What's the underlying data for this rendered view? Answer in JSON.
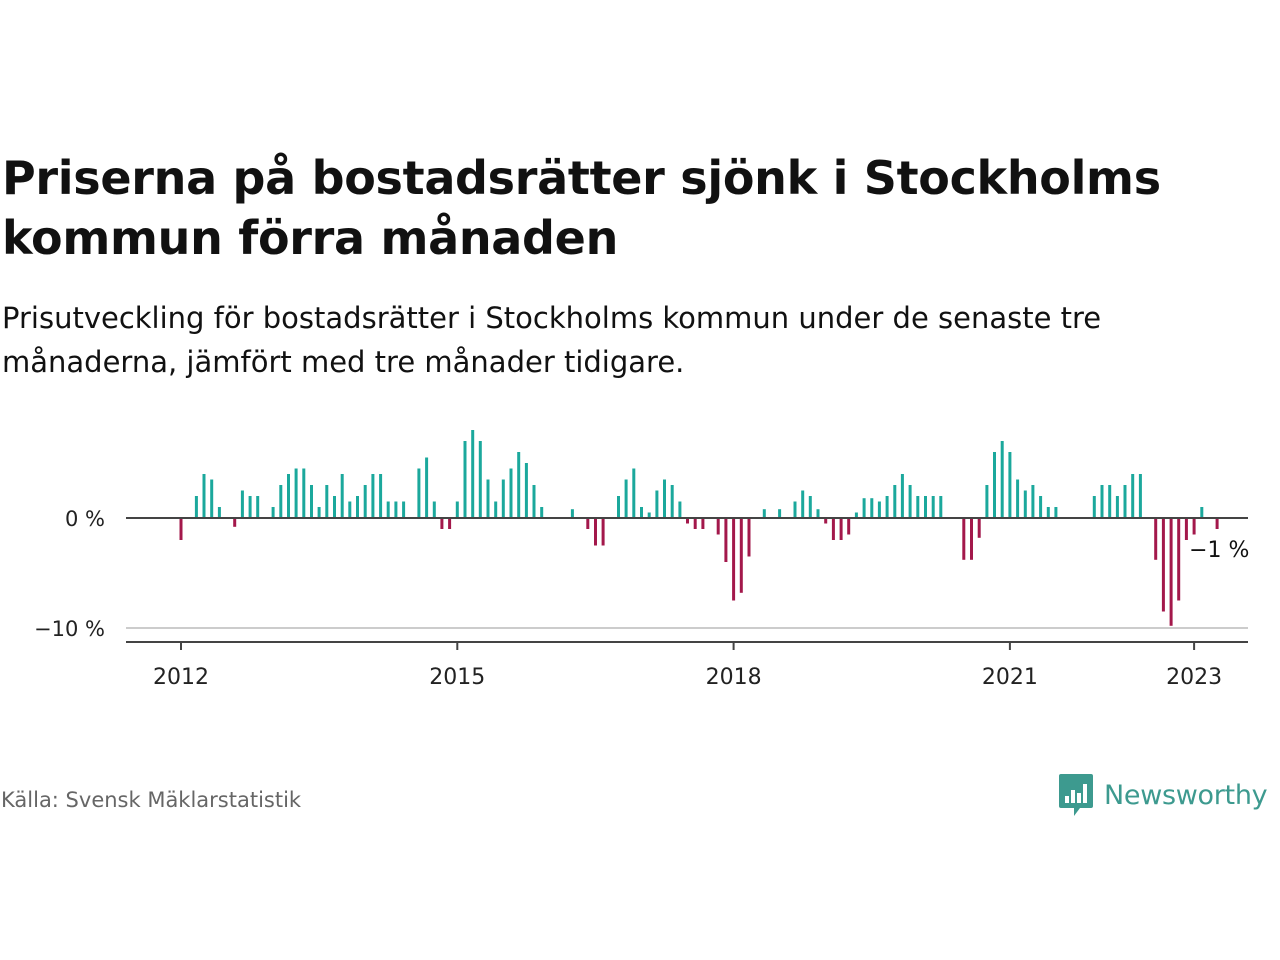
{
  "header": {
    "title": "Priserna på bostadsrätter sjönk i Stockholms kommun förra månaden",
    "subtitle": "Prisutveckling för bostadsrätter i Stockholms kommun under de senaste tre månaderna, jämfört med tre månader tidigare."
  },
  "footer": {
    "source": "Källa: Svensk Mäklarstatistik",
    "brand": "Newsworthy"
  },
  "colors": {
    "positive": "#1ba89c",
    "negative": "#a3184b",
    "axis": "#444444",
    "grid": "#cccccc",
    "brand": "#3d9a8f"
  },
  "chart_data": {
    "type": "bar",
    "xlabel": "",
    "ylabel": "",
    "ylim": [
      -11,
      8
    ],
    "y_ticks": [
      {
        "value": 0,
        "label": "0 %"
      },
      {
        "value": -10,
        "label": "−10 %"
      }
    ],
    "x_ticks": [
      {
        "value": 2012.0,
        "label": "2012"
      },
      {
        "value": 2015.0,
        "label": "2015"
      },
      {
        "value": 2018.0,
        "label": "2018"
      },
      {
        "value": 2021.0,
        "label": "2021"
      },
      {
        "value": 2023.0,
        "label": "2023"
      }
    ],
    "annotation": {
      "label": "−1 %",
      "value": -1
    },
    "start": "2012-01",
    "series": [
      {
        "values": [
          -2,
          0,
          2,
          4,
          3.5,
          1,
          0,
          -0.8,
          2.5,
          2,
          2,
          0,
          1,
          3,
          4,
          4.5,
          4.5,
          3,
          1,
          3,
          2,
          4,
          1.5,
          2,
          3,
          4,
          4,
          1.5,
          1.5,
          1.5,
          0,
          4.5,
          5.5,
          1.5,
          -1,
          -1,
          1.5,
          7,
          8,
          7,
          3.5,
          1.5,
          3.5,
          4.5,
          6,
          5,
          3,
          1,
          0,
          0,
          0,
          0.8,
          0,
          -1,
          -2.5,
          -2.5,
          0,
          2,
          3.5,
          4.5,
          1,
          0.5,
          2.5,
          3.5,
          3,
          1.5,
          -0.5,
          -1,
          -1,
          0,
          -1.5,
          -4,
          -7.5,
          -6.8,
          -3.5,
          0,
          0.8,
          0,
          0.8,
          0,
          1.5,
          2.5,
          2,
          0.8,
          -0.5,
          -2,
          -2,
          -1.5,
          0.5,
          1.8,
          1.8,
          1.5,
          2,
          3,
          4,
          3,
          2,
          2,
          2,
          2,
          0,
          0,
          -3.8,
          -3.8,
          -1.8,
          3,
          6,
          7,
          6,
          3.5,
          2.5,
          3,
          2,
          1,
          1,
          0,
          0,
          0,
          0,
          2,
          3,
          3,
          2,
          3,
          4,
          4,
          0,
          -3.8,
          -8.5,
          -9.8,
          -7.5,
          -2,
          -1.5,
          1,
          0,
          -1
        ]
      }
    ]
  }
}
